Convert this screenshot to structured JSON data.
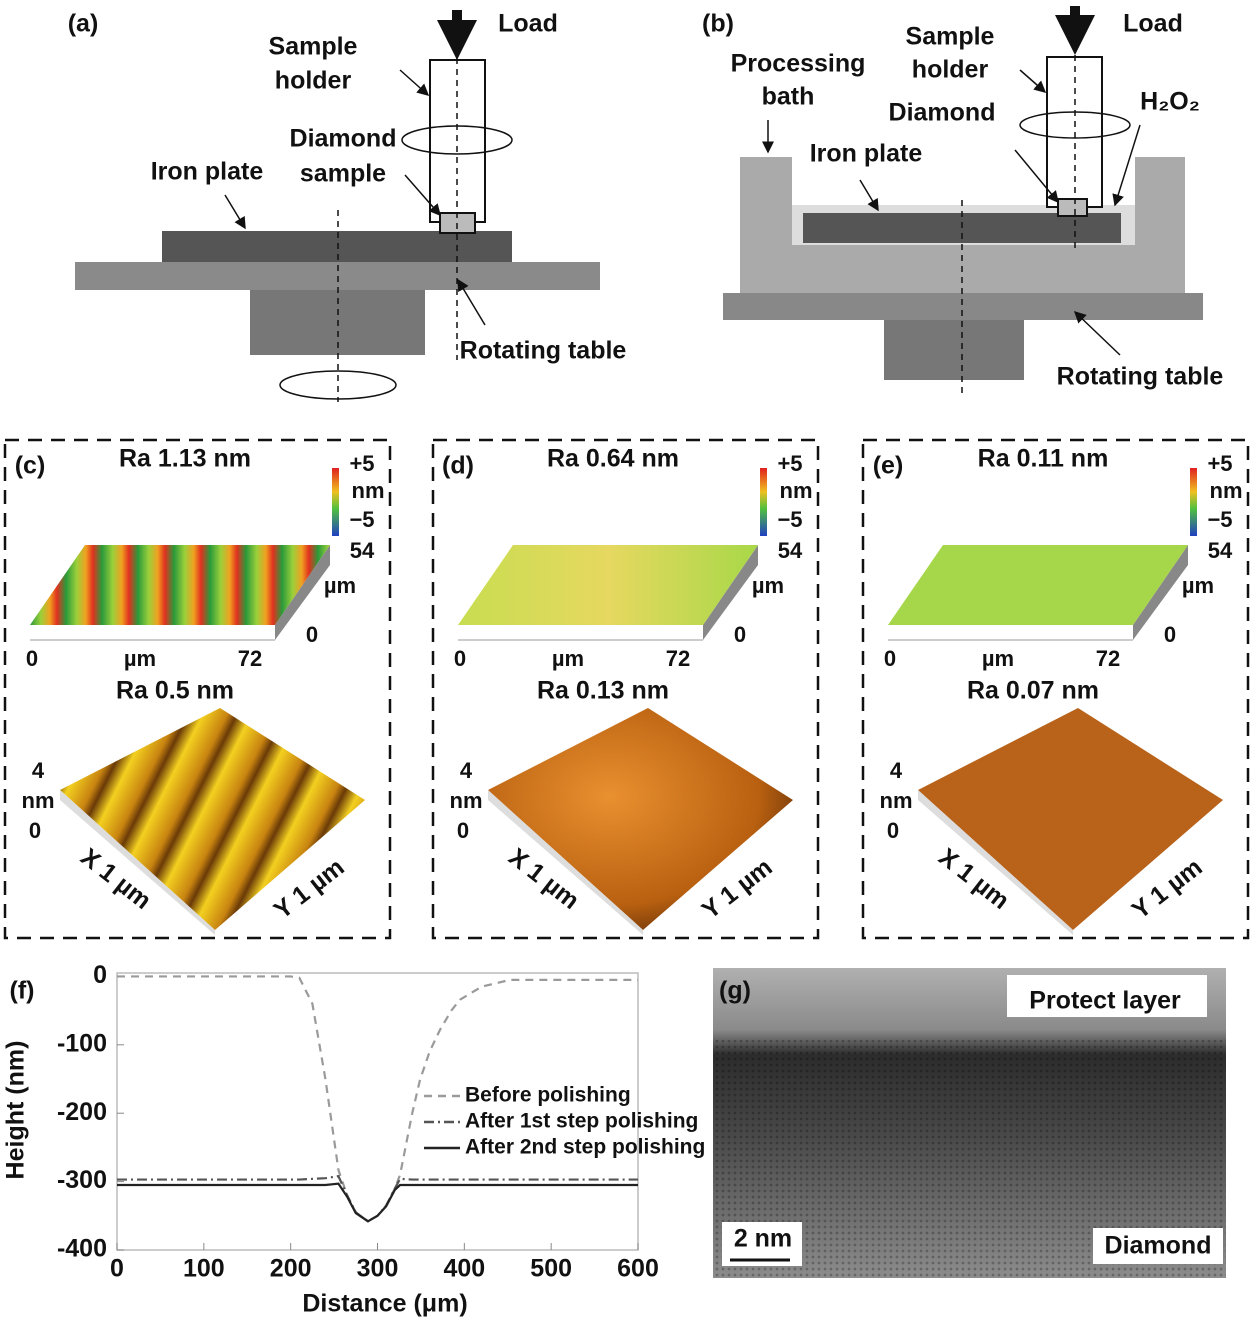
{
  "panels": {
    "a": {
      "label": "(a)",
      "load": "Load",
      "sample_holder": [
        "Sample",
        "holder"
      ],
      "diamond_sample": [
        "Diamond",
        "sample"
      ],
      "iron_plate": "Iron plate",
      "rotating_table": "Rotating table"
    },
    "b": {
      "label": "(b)",
      "load": "Load",
      "sample_holder": [
        "Sample",
        "holder"
      ],
      "processing_bath": [
        "Processing",
        "bath"
      ],
      "diamond": "Diamond",
      "iron_plate": "Iron plate",
      "h2o2": "H₂O₂",
      "rotating_table": "Rotating table"
    },
    "c": {
      "label": "(c)",
      "top_title": "Ra 1.13 nm",
      "colorbar": [
        "+5",
        "nm",
        "−5"
      ],
      "z_axis": [
        "54",
        "µm",
        "0"
      ],
      "x_axis": [
        "0",
        "µm",
        "72"
      ],
      "bottom_title": "Ra 0.5 nm",
      "height_axis": [
        "4",
        "nm",
        "0"
      ],
      "x_label": "X 1 µm",
      "y_label": "Y 1 µm"
    },
    "d": {
      "label": "(d)",
      "top_title": "Ra 0.64 nm",
      "colorbar": [
        "+5",
        "nm",
        "−5"
      ],
      "z_axis": [
        "54",
        "µm",
        "0"
      ],
      "x_axis": [
        "0",
        "µm",
        "72"
      ],
      "bottom_title": "Ra 0.13 nm",
      "height_axis": [
        "4",
        "nm",
        "0"
      ],
      "x_label": "X 1 µm",
      "y_label": "Y 1 µm"
    },
    "e": {
      "label": "(e)",
      "top_title": "Ra 0.11 nm",
      "colorbar": [
        "+5",
        "nm",
        "−5"
      ],
      "z_axis": [
        "54",
        "µm",
        "0"
      ],
      "x_axis": [
        "0",
        "µm",
        "72"
      ],
      "bottom_title": "Ra 0.07 nm",
      "height_axis": [
        "4",
        "nm",
        "0"
      ],
      "x_label": "X 1 µm",
      "y_label": "Y 1 µm"
    },
    "g": {
      "label": "(g)",
      "protect_layer": "Protect layer",
      "diamond": "Diamond",
      "scale_bar": "2 nm"
    }
  },
  "chart_data": {
    "type": "line",
    "panel_label": "(f)",
    "x_label": "Distance (μm)",
    "y_label": "Height (nm)",
    "x": [
      0,
      100,
      200,
      210,
      225,
      240,
      255,
      265,
      275,
      289,
      300,
      310,
      320,
      326,
      340,
      349,
      360,
      372,
      385,
      395,
      420,
      453,
      500,
      600
    ],
    "series": [
      {
        "name": "Before polishing",
        "color": "#9a9a9a",
        "dash": "dashed",
        "values": [
          0,
          0,
          0,
          -2,
          -40,
          -150,
          -283,
          -320,
          -345,
          -358,
          -350,
          -335,
          -310,
          -290,
          -200,
          -151,
          -110,
          -78,
          -50,
          -34,
          -15,
          -5,
          -5,
          -5
        ]
      },
      {
        "name": "After 1st step polishing",
        "color": "#555555",
        "dash": "dashdot",
        "values": [
          -297,
          -297,
          -297,
          -297,
          -296,
          -295,
          -292,
          -320,
          -345,
          -358,
          -350,
          -335,
          -310,
          -296,
          -297,
          -297,
          -297,
          -297,
          -297,
          -297,
          -297,
          -297,
          -297,
          -297
        ]
      },
      {
        "name": "After 2nd step polishing",
        "color": "#222222",
        "dash": "solid",
        "values": [
          -305,
          -305,
          -305,
          -305,
          -305,
          -305,
          -303,
          -322,
          -346,
          -358,
          -350,
          -336,
          -312,
          -305,
          -305,
          -305,
          -305,
          -305,
          -305,
          -305,
          -305,
          -305,
          -305,
          -305
        ]
      }
    ],
    "xlim": [
      0,
      600
    ],
    "ylim": [
      -400,
      5
    ],
    "xticks": [
      0,
      100,
      200,
      300,
      400,
      500,
      600
    ],
    "yticks": [
      0,
      -100,
      -200,
      -300,
      -400
    ],
    "grid": false,
    "legend": "right"
  }
}
